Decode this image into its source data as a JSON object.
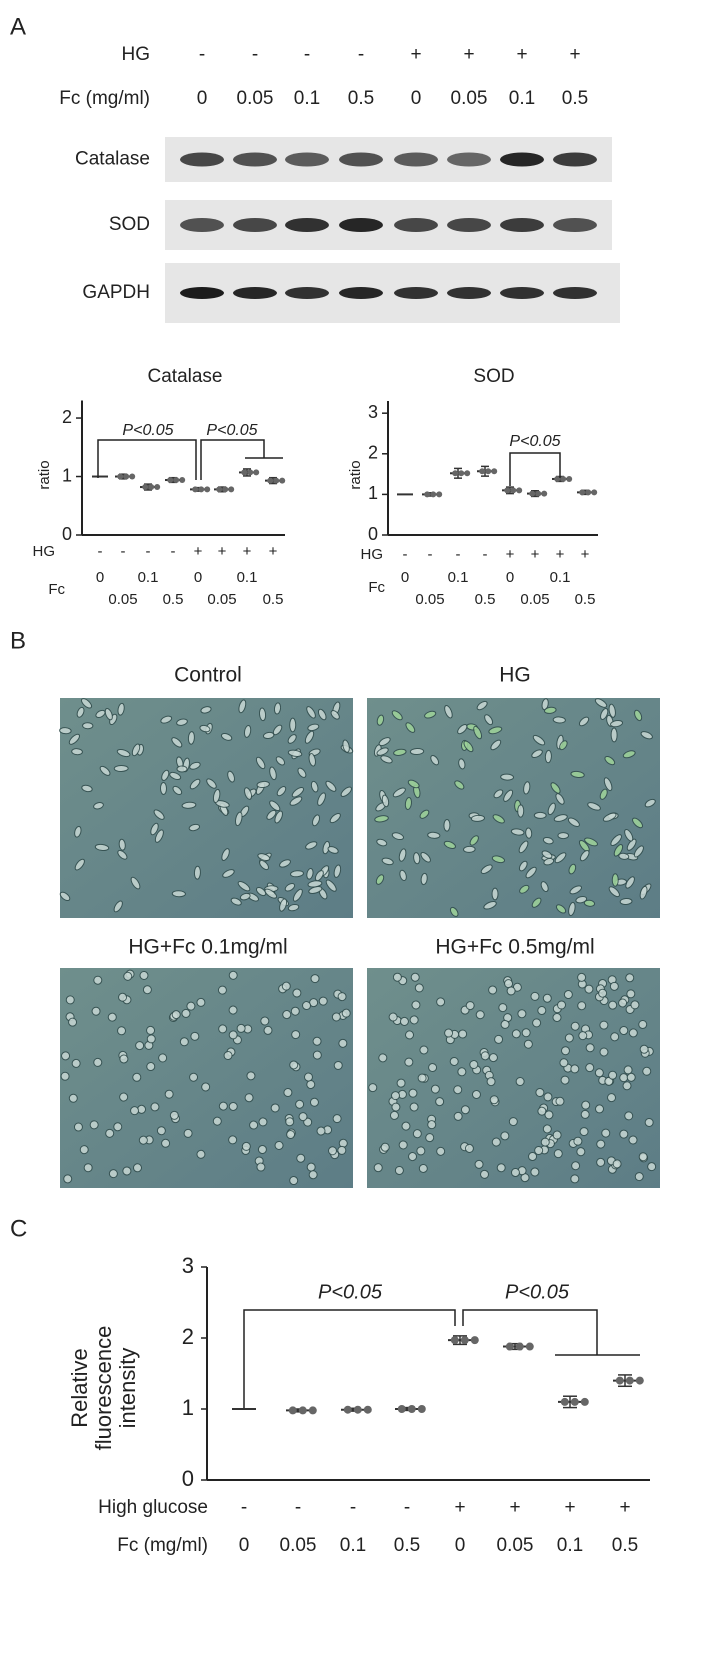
{
  "panels": {
    "A": {
      "label": "A",
      "rows": [
        {
          "label": "HG",
          "values": [
            "-",
            "-",
            "-",
            "-",
            "+",
            "+",
            "+",
            "+"
          ]
        },
        {
          "label": "Fc (mg/ml)",
          "values": [
            "0",
            "0.05",
            "0.1",
            "0.5",
            "0",
            "0.05",
            "0.1",
            "0.5"
          ]
        }
      ],
      "blots": [
        "Catalase",
        "SOD",
        "GAPDH"
      ]
    },
    "B": {
      "label": "B",
      "images": [
        "Control",
        "HG",
        "HG+Fc 0.1mg/ml",
        "HG+Fc 0.5mg/ml"
      ]
    },
    "C": {
      "label": "C"
    }
  },
  "chart_data": [
    {
      "type": "dot",
      "title": "Catalase",
      "ylabel": "ratio",
      "values": [
        1.0,
        1.0,
        0.82,
        0.94,
        0.78,
        0.78,
        1.07,
        0.93
      ],
      "errors": [
        0,
        0.04,
        0.05,
        0.04,
        0.03,
        0.04,
        0.06,
        0.05
      ],
      "ylim": [
        0,
        2.3
      ],
      "yticks": [
        0,
        1,
        2
      ],
      "rows": [
        {
          "label": "HG",
          "values": [
            "-",
            "-",
            "-",
            "-",
            "+",
            "+",
            "+",
            "+"
          ]
        },
        {
          "label": "Fc",
          "values": [
            "0",
            "0.05",
            "0.1",
            "0.5",
            "0",
            "0.05",
            "0.1",
            "0.5"
          ]
        }
      ],
      "annotations": [
        "P<0.05",
        "P<0.05"
      ]
    },
    {
      "type": "dot",
      "title": "SOD",
      "ylabel": "ratio",
      "values": [
        1.0,
        1.0,
        1.52,
        1.57,
        1.1,
        1.02,
        1.38,
        1.05
      ],
      "errors": [
        0,
        0.04,
        0.12,
        0.12,
        0.08,
        0.07,
        0.06,
        0.05
      ],
      "ylim": [
        0,
        3.3
      ],
      "yticks": [
        0,
        1,
        2,
        3
      ],
      "rows": [
        {
          "label": "HG",
          "values": [
            "-",
            "-",
            "-",
            "-",
            "+",
            "+",
            "+",
            "+"
          ]
        },
        {
          "label": "Fc",
          "values": [
            "0",
            "0.05",
            "0.1",
            "0.5",
            "0",
            "0.05",
            "0.1",
            "0.5"
          ]
        }
      ],
      "annotations": [
        "P<0.05"
      ]
    },
    {
      "type": "dot",
      "ylabel": "Relative fluorescence intensity",
      "values": [
        1.0,
        0.98,
        0.99,
        1.0,
        1.97,
        1.88,
        1.1,
        1.4
      ],
      "errors": [
        0,
        0.02,
        0.02,
        0.02,
        0.06,
        0.04,
        0.08,
        0.08
      ],
      "ylim": [
        0,
        3
      ],
      "yticks": [
        0,
        1,
        2,
        3
      ],
      "rows": [
        {
          "label": "High glucose",
          "values": [
            "-",
            "-",
            "-",
            "-",
            "+",
            "+",
            "+",
            "+"
          ]
        },
        {
          "label": "Fc (mg/ml)",
          "values": [
            "0",
            "0.05",
            "0.1",
            "0.5",
            "0",
            "0.05",
            "0.1",
            "0.5"
          ]
        }
      ],
      "annotations": [
        "P<0.05",
        "P<0.05"
      ]
    }
  ]
}
